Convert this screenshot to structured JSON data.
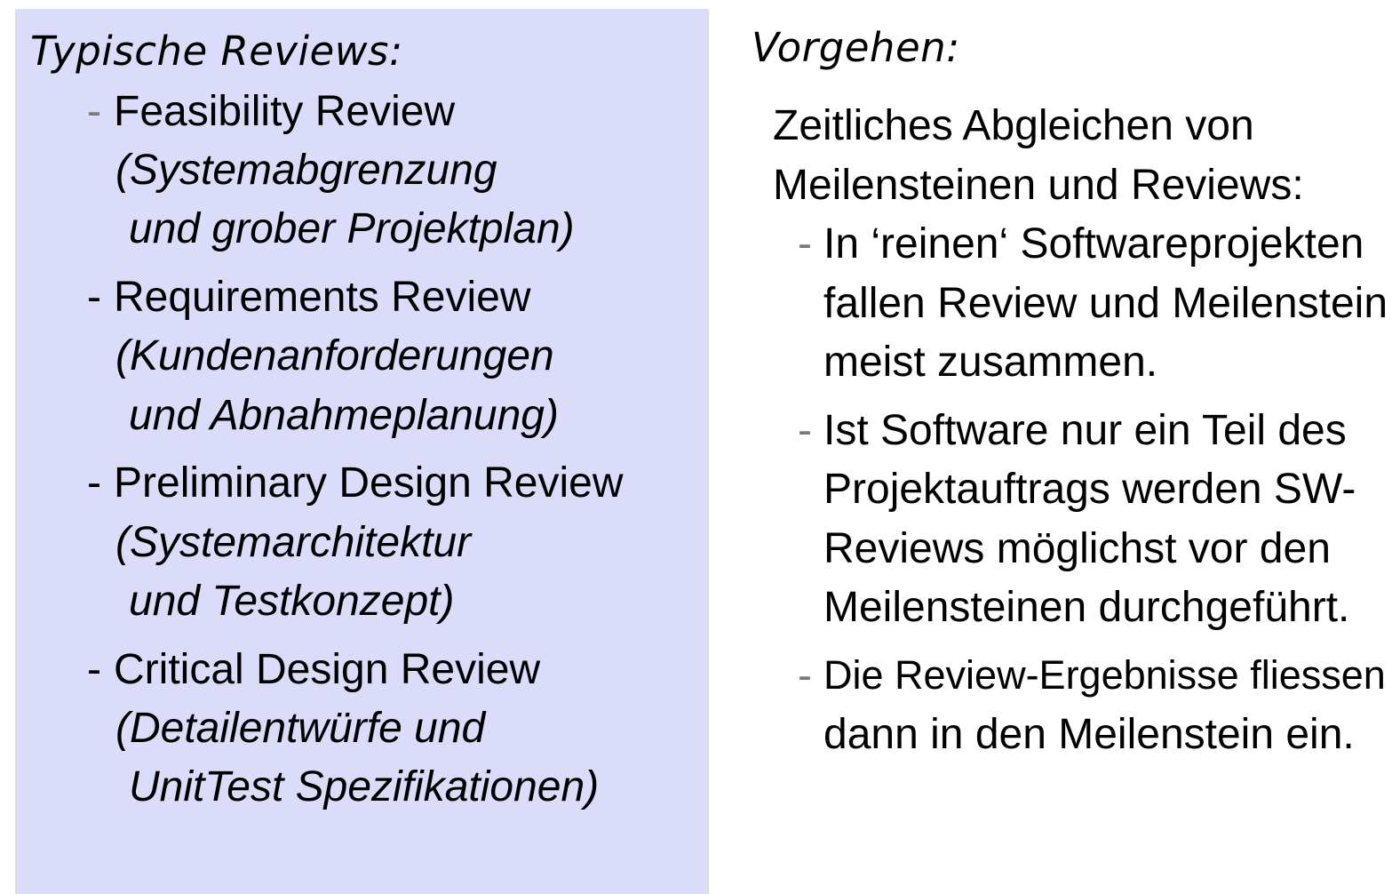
{
  "left": {
    "heading": "Typische Reviews:",
    "items": [
      {
        "dash": "-",
        "title": "Feasibility Review",
        "desc1": "(Systemabgrenzung",
        "desc2": "und grober Projektplan)"
      },
      {
        "dash": "-",
        "title": "Requirements Review",
        "desc1": "(Kundenanforderungen",
        "desc2": "und Abnahmeplanung)"
      },
      {
        "dash": "-",
        "title": "Preliminary Design Review",
        "desc1": "(Systemarchitektur",
        "desc2": "und Testkonzept)"
      },
      {
        "dash": "-",
        "title": "Critical Design Review",
        "desc1": "(Detailentwürfe und",
        "desc2": "UnitTest Spezifikationen)"
      }
    ]
  },
  "right": {
    "heading": "Vorgehen:",
    "intro1": "Zeitliches Abgleichen von",
    "intro2": "Meilensteinen und Reviews:",
    "points": [
      {
        "dash": "-",
        "lines": [
          "In ‘reinen‘ Softwareprojekten",
          "fallen Review und Meilenstein",
          "meist zusammen."
        ]
      },
      {
        "dash": "-",
        "lines": [
          "Ist Software nur ein Teil des",
          "Projektauftrags werden SW-",
          "Reviews möglichst vor den",
          "Meilensteinen durchgeführt."
        ]
      },
      {
        "dash": "-",
        "lines": [
          "Die Review-Ergebnisse fliessen",
          "dann in den Meilenstein ein."
        ]
      }
    ]
  }
}
